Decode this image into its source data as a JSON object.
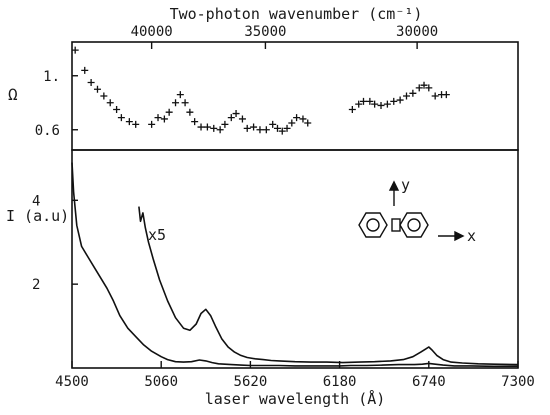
{
  "chart_data": [
    {
      "type": "scatter",
      "panel": "top",
      "title": "Two-photon wavenumber (cm⁻¹)",
      "ylabel": "Ω",
      "x_unit": "laser wavelength (Å)",
      "xlim": [
        4500,
        7300
      ],
      "ylim": [
        0.45,
        1.25
      ],
      "y_ticks": [
        {
          "value": 1.0,
          "label": "1."
        },
        {
          "value": 0.6,
          "label": "0.6"
        }
      ],
      "top_ticks": [
        {
          "wavenumber": 40000,
          "label": "40000"
        },
        {
          "wavenumber": 35000,
          "label": "35000"
        },
        {
          "wavenumber": 30000,
          "label": "30000"
        }
      ],
      "marker": "+",
      "points": [
        [
          4520,
          1.19
        ],
        [
          4580,
          1.04
        ],
        [
          4620,
          0.95
        ],
        [
          4660,
          0.9
        ],
        [
          4700,
          0.85
        ],
        [
          4740,
          0.8
        ],
        [
          4780,
          0.75
        ],
        [
          4810,
          0.69
        ],
        [
          4860,
          0.66
        ],
        [
          4900,
          0.64
        ],
        [
          5000,
          0.64
        ],
        [
          5040,
          0.69
        ],
        [
          5080,
          0.68
        ],
        [
          5110,
          0.73
        ],
        [
          5150,
          0.8
        ],
        [
          5180,
          0.86
        ],
        [
          5210,
          0.8
        ],
        [
          5240,
          0.73
        ],
        [
          5270,
          0.66
        ],
        [
          5310,
          0.62
        ],
        [
          5350,
          0.62
        ],
        [
          5390,
          0.61
        ],
        [
          5430,
          0.6
        ],
        [
          5460,
          0.64
        ],
        [
          5500,
          0.69
        ],
        [
          5530,
          0.72
        ],
        [
          5570,
          0.68
        ],
        [
          5600,
          0.61
        ],
        [
          5640,
          0.62
        ],
        [
          5680,
          0.6
        ],
        [
          5720,
          0.6
        ],
        [
          5760,
          0.64
        ],
        [
          5790,
          0.61
        ],
        [
          5820,
          0.59
        ],
        [
          5850,
          0.61
        ],
        [
          5880,
          0.65
        ],
        [
          5910,
          0.69
        ],
        [
          5950,
          0.68
        ],
        [
          5980,
          0.65
        ],
        [
          6260,
          0.75
        ],
        [
          6300,
          0.79
        ],
        [
          6330,
          0.81
        ],
        [
          6370,
          0.81
        ],
        [
          6400,
          0.79
        ],
        [
          6440,
          0.78
        ],
        [
          6480,
          0.79
        ],
        [
          6520,
          0.81
        ],
        [
          6560,
          0.82
        ],
        [
          6600,
          0.85
        ],
        [
          6640,
          0.87
        ],
        [
          6680,
          0.91
        ],
        [
          6710,
          0.93
        ],
        [
          6740,
          0.91
        ],
        [
          6780,
          0.85
        ],
        [
          6820,
          0.86
        ],
        [
          6850,
          0.86
        ]
      ]
    },
    {
      "type": "line",
      "panel": "bottom",
      "xlabel": "laser wavelength (Å)",
      "ylabel": "I (a.u)",
      "xlim": [
        4500,
        7300
      ],
      "ylim": [
        0,
        5.2
      ],
      "x_ticks": [
        4500,
        5060,
        5620,
        6180,
        6740,
        7300
      ],
      "y_ticks": [
        {
          "value": 2,
          "label": "2"
        },
        {
          "value": 4,
          "label": "4"
        }
      ],
      "annotations": [
        {
          "text": "x5"
        }
      ],
      "inset": {
        "y_label": "y",
        "x_label": "x"
      },
      "series": [
        {
          "x": [
            4500,
            4510,
            4530,
            4560,
            4600,
            4640,
            4680,
            4720,
            4760,
            4800,
            4850,
            4900,
            4950,
            5000,
            5060,
            5100,
            5150,
            5200,
            5250,
            5300,
            5340,
            5380,
            5420,
            5460,
            5500,
            5560,
            5620,
            5700,
            5800,
            5900,
            6000,
            6100,
            6180,
            6250,
            6350,
            6450,
            6550,
            6650,
            6700,
            6740,
            6780,
            6830,
            6900,
            7000,
            7150,
            7300
          ],
          "y": [
            4.9,
            4.2,
            3.4,
            2.9,
            2.65,
            2.4,
            2.15,
            1.9,
            1.6,
            1.25,
            0.95,
            0.75,
            0.55,
            0.4,
            0.27,
            0.2,
            0.15,
            0.14,
            0.15,
            0.19,
            0.17,
            0.13,
            0.1,
            0.09,
            0.08,
            0.07,
            0.06,
            0.06,
            0.06,
            0.05,
            0.05,
            0.05,
            0.05,
            0.06,
            0.06,
            0.07,
            0.08,
            0.08,
            0.09,
            0.11,
            0.09,
            0.07,
            0.05,
            0.05,
            0.04,
            0.04
          ]
        },
        {
          "x": [
            4920,
            4930,
            4945,
            4960,
            4980,
            5010,
            5050,
            5100,
            5150,
            5200,
            5240,
            5280,
            5310,
            5340,
            5370,
            5400,
            5440,
            5480,
            5520,
            5560,
            5600,
            5650,
            5700,
            5750,
            5800,
            5900,
            6000,
            6100,
            6200,
            6300,
            6400,
            6500,
            6580,
            6640,
            6690,
            6720,
            6740,
            6760,
            6790,
            6830,
            6880,
            6950,
            7050,
            7150,
            7300
          ],
          "y": [
            3.85,
            3.5,
            3.7,
            3.35,
            3.0,
            2.6,
            2.1,
            1.6,
            1.2,
            0.95,
            0.9,
            1.05,
            1.3,
            1.4,
            1.25,
            1.0,
            0.7,
            0.5,
            0.38,
            0.3,
            0.25,
            0.22,
            0.2,
            0.18,
            0.17,
            0.15,
            0.14,
            0.14,
            0.13,
            0.14,
            0.15,
            0.17,
            0.2,
            0.27,
            0.38,
            0.45,
            0.5,
            0.43,
            0.3,
            0.2,
            0.14,
            0.12,
            0.1,
            0.09,
            0.08
          ]
        }
      ]
    }
  ]
}
